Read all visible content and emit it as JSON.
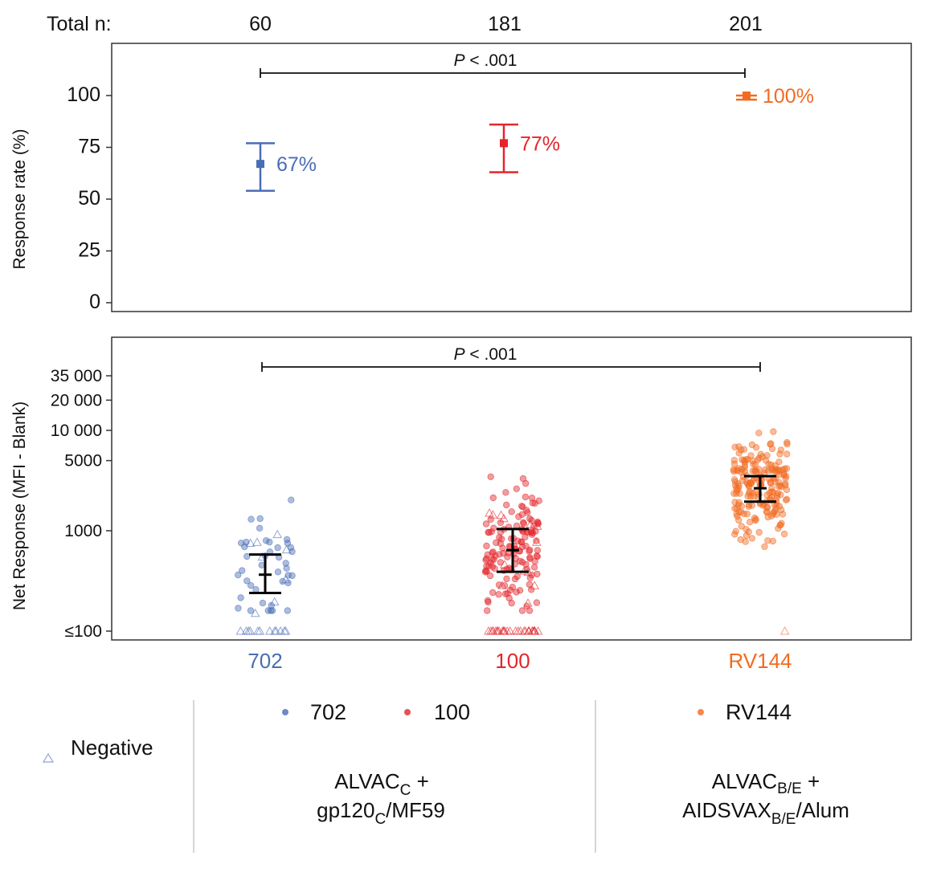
{
  "chart_data": [
    {
      "type": "scatter",
      "panel": "response_rate",
      "ylabel": "Response rate (%)",
      "ylim": [
        0,
        115
      ],
      "yticks": [
        "100",
        "75",
        "50",
        "25",
        "0"
      ],
      "ytick_values": [
        100,
        75,
        50,
        25,
        0
      ],
      "total_n_label": "Total n:",
      "total_n": [
        "60",
        "181",
        "201"
      ],
      "pvalue_text": "P < .001",
      "pvalue_span": [
        "702",
        "RV144"
      ],
      "series": [
        {
          "name": "702",
          "color": "#4a6db5",
          "rate": 67,
          "ci": [
            54,
            77
          ],
          "label": "67%"
        },
        {
          "name": "100",
          "color": "#e3262b",
          "rate": 77,
          "ci": [
            63,
            86
          ],
          "label": "77%"
        },
        {
          "name": "RV144",
          "color": "#f26b21",
          "rate": 100,
          "ci": [
            98,
            100
          ],
          "label": "100%"
        }
      ]
    },
    {
      "type": "scatter",
      "panel": "net_response",
      "ylabel": "Net Response (MFI - Blank)",
      "yscale": "log",
      "ylim": [
        92,
        60000
      ],
      "yticks": [
        "35 000",
        "20 000",
        "10 000",
        "5000",
        "1000",
        "≤100"
      ],
      "ytick_values": [
        35000,
        20000,
        10000,
        5000,
        1000,
        100
      ],
      "pvalue_text": "P < .001",
      "pvalue_span": [
        "702",
        "RV144"
      ],
      "categories": [
        "702",
        "100",
        "RV144"
      ],
      "series": [
        {
          "name": "702",
          "color": "#4a6db5",
          "geomean": 365,
          "ci": [
            240,
            580
          ],
          "n_positive": 40,
          "n_negative": 20
        },
        {
          "name": "100",
          "color": "#e3262b",
          "geomean": 640,
          "ci": [
            390,
            1040
          ],
          "n_positive": 139,
          "n_negative": 42
        },
        {
          "name": "RV144",
          "color": "#f26b21",
          "geomean": 2650,
          "ci": [
            1950,
            3500
          ],
          "n_positive": 200,
          "n_negative": 1
        }
      ]
    }
  ],
  "legend": {
    "negative_label": "Negative",
    "groups": [
      {
        "items": [
          {
            "label": "702",
            "color": "#4a6db5"
          },
          {
            "label": "100",
            "color": "#e3262b"
          }
        ],
        "regimen_line1_main": "ALVAC",
        "regimen_line1_sub": "C",
        "regimen_line1_tail": " +",
        "regimen_line2_pre": "gp120",
        "regimen_line2_sub": "C",
        "regimen_line2_tail": "/MF59"
      },
      {
        "items": [
          {
            "label": "RV144",
            "color": "#f26b21"
          }
        ],
        "regimen_line1_main": "ALVAC",
        "regimen_line1_sub": "B/E",
        "regimen_line1_tail": " +",
        "regimen_line2_pre": "AIDSVAX",
        "regimen_line2_sub": "B/E",
        "regimen_line2_tail": "/Alum"
      }
    ]
  }
}
